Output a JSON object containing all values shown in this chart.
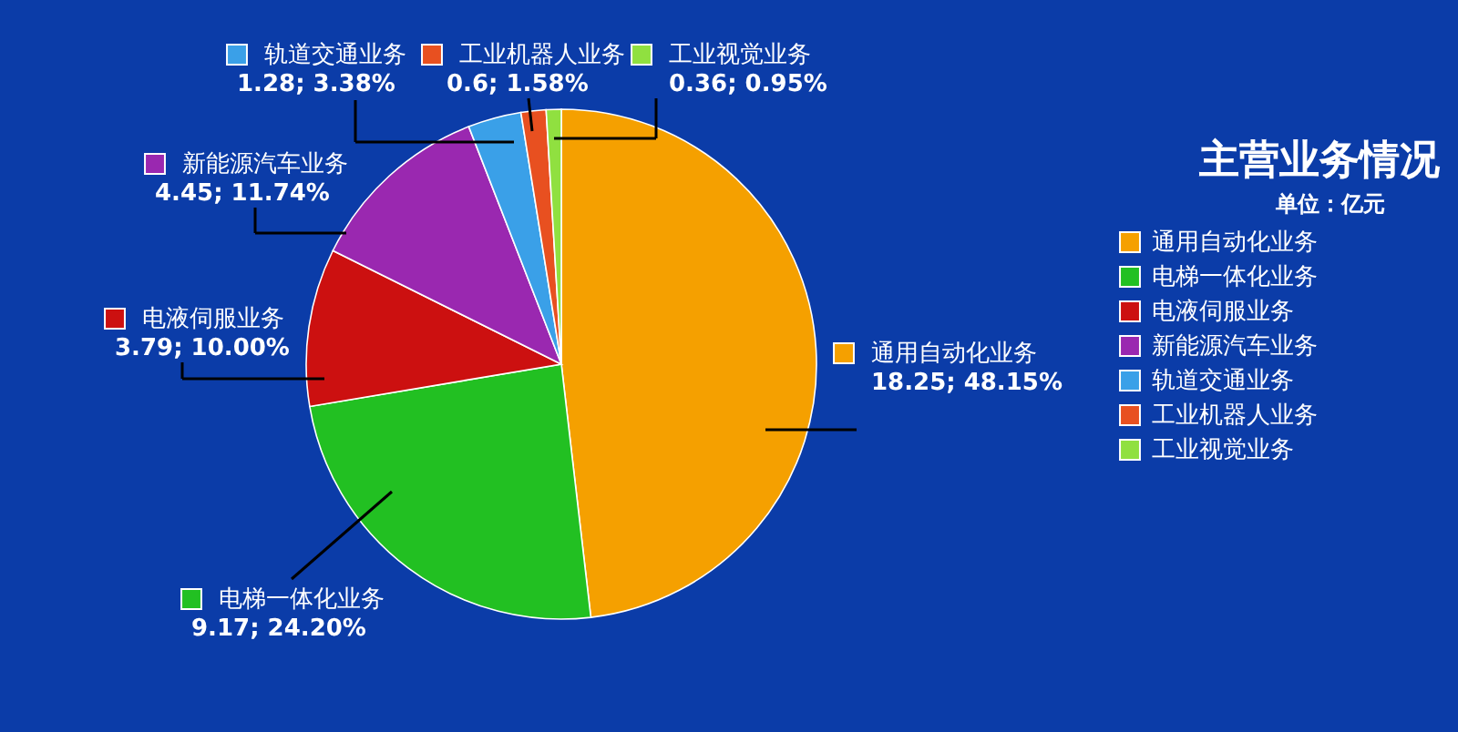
{
  "chart_data": {
    "type": "pie",
    "title": "主营业务情况",
    "subtitle": "单位：亿元",
    "categories": [
      "通用自动化业务",
      "电梯一体化业务",
      "电液伺服业务",
      "新能源汽车业务",
      "轨道交通业务",
      "工业机器人业务",
      "工业视觉业务"
    ],
    "values": [
      18.25,
      9.17,
      3.79,
      4.45,
      1.28,
      0.6,
      0.36
    ],
    "colors": [
      "#f5a000",
      "#22c022",
      "#cc1010",
      "#9a28b0",
      "#3aa0e8",
      "#e85020",
      "#90e040"
    ],
    "value_labels": [
      "18.25; 48.15%",
      "9.17; 24.20%",
      "3.79; 10.00%",
      "4.45; 11.74%",
      "1.28; 3.38%",
      "0.6; 1.58%",
      "0.36; 0.95%"
    ],
    "legend": "right"
  }
}
